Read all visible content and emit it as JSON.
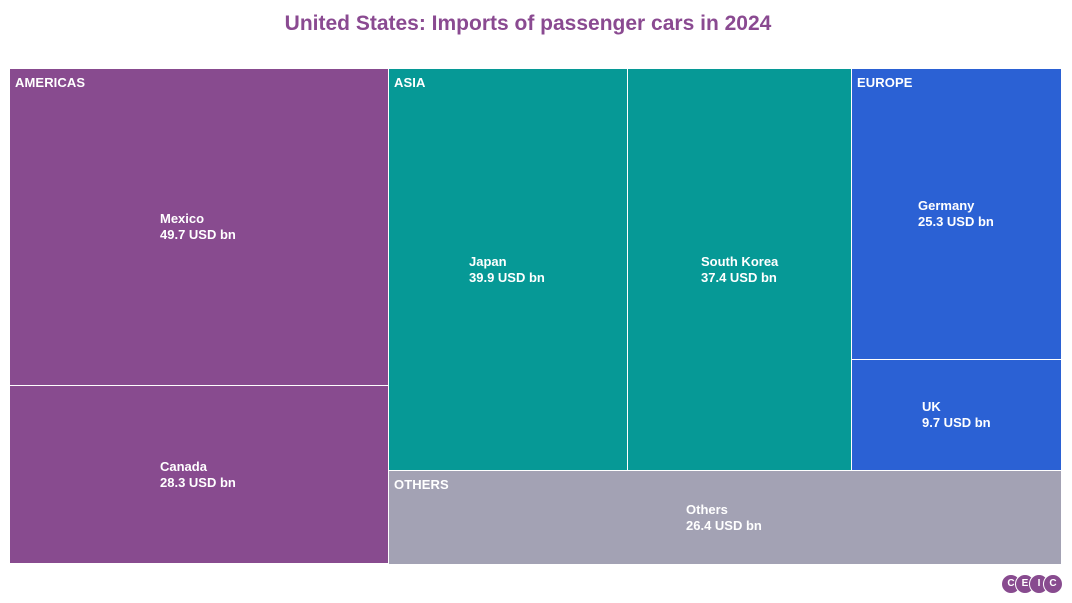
{
  "chart_data": {
    "type": "treemap",
    "title": "United States: Imports of passenger cars in 2024",
    "unit": "USD bn",
    "groups": [
      {
        "name": "AMERICAS",
        "color": "#884b8f",
        "items": [
          {
            "name": "Mexico",
            "value": 49.7,
            "value_label": "49.7 USD bn"
          },
          {
            "name": "Canada",
            "value": 28.3,
            "value_label": "28.3 USD bn"
          }
        ]
      },
      {
        "name": "ASIA",
        "color": "#069996",
        "items": [
          {
            "name": "Japan",
            "value": 39.9,
            "value_label": "39.9 USD bn"
          },
          {
            "name": "South Korea",
            "value": 37.4,
            "value_label": "37.4 USD bn"
          }
        ]
      },
      {
        "name": "EUROPE",
        "color": "#2b61d4",
        "items": [
          {
            "name": "Germany",
            "value": 25.3,
            "value_label": "25.3 USD bn"
          },
          {
            "name": "UK",
            "value": 9.7,
            "value_label": "9.7 USD bn"
          }
        ]
      },
      {
        "name": "OTHERS",
        "color": "#a3a2b4",
        "items": [
          {
            "name": "Others",
            "value": 26.4,
            "value_label": "26.4 USD bn"
          }
        ]
      }
    ]
  },
  "logo": {
    "letters": [
      "C",
      "E",
      "I",
      "C"
    ],
    "color": "#884b8f"
  }
}
